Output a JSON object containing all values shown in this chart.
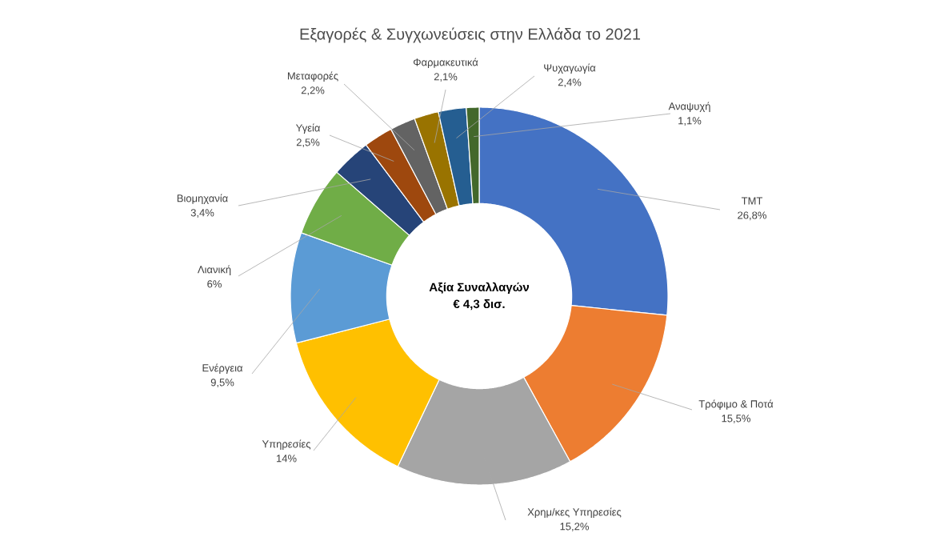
{
  "chart_data": {
    "type": "donut",
    "title": "Εξαγορές & Συγχωνεύσεις στην Ελλάδα το 2021",
    "categories": [
      "TMT",
      "Τρόφιμο & Ποτά",
      "Χρημ/κες Υπηρεσίες",
      "Υπηρεσίες",
      "Ενέργεια",
      "Λιανική",
      "Βιομηχανία",
      "Υγεία",
      "Μεταφορές",
      "Φαρμακευτικά",
      "Ψυχαγωγία",
      "Αναψυχή"
    ],
    "values": [
      26.8,
      15.5,
      15.2,
      14,
      9.5,
      6,
      3.4,
      2.5,
      2.2,
      2.1,
      2.4,
      1.1
    ],
    "value_labels": [
      "26,8%",
      "15,5%",
      "15,2%",
      "14%",
      "9,5%",
      "6%",
      "3,4%",
      "2,5%",
      "2,2%",
      "2,1%",
      "2,4%",
      "1,1%"
    ],
    "colors": [
      "#4472c4",
      "#ed7d31",
      "#a5a5a5",
      "#ffc000",
      "#5b9bd5",
      "#70ad47",
      "#264478",
      "#9e480e",
      "#636363",
      "#997300",
      "#255e91",
      "#43682b"
    ],
    "annotations": [
      "**Αξία Συναλλαγών**",
      "**€ 4,3 δισ.**"
    ]
  }
}
